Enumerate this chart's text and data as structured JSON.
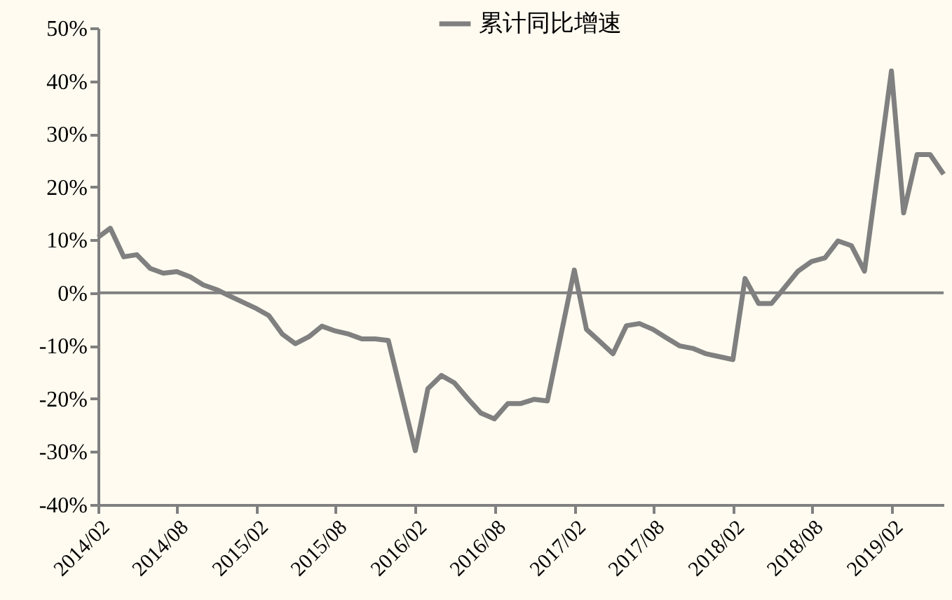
{
  "chart_data": {
    "type": "line",
    "legend": "top",
    "x": [
      "2014-02",
      "2014-03",
      "2014-04",
      "2014-05",
      "2014-06",
      "2014-07",
      "2014-08",
      "2014-09",
      "2014-10",
      "2014-11",
      "2014-12",
      "2015-02",
      "2015-03",
      "2015-04",
      "2015-05",
      "2015-06",
      "2015-07",
      "2015-08",
      "2015-09",
      "2015-10",
      "2015-11",
      "2015-12",
      "2016-02",
      "2016-03",
      "2016-04",
      "2016-05",
      "2016-06",
      "2016-07",
      "2016-08",
      "2016-09",
      "2016-10",
      "2016-11",
      "2016-12",
      "2017-02",
      "2017-03",
      "2017-04",
      "2017-05",
      "2017-06",
      "2017-07",
      "2017-08",
      "2017-09",
      "2017-10",
      "2017-11",
      "2017-12",
      "2018-02",
      "2018-03",
      "2018-04",
      "2018-05",
      "2018-06",
      "2018-07",
      "2018-08",
      "2018-09",
      "2018-10",
      "2018-11",
      "2018-12",
      "2019-02",
      "2019-03",
      "2019-04",
      "2019-05",
      "2019-06"
    ],
    "series": [
      {
        "name": "累计同比增速",
        "color": "#808080",
        "values": [
          10.5,
          12.2,
          6.8,
          7.2,
          4.6,
          3.7,
          4.0,
          3.0,
          1.5,
          0.6,
          -0.6,
          -3.0,
          -4.3,
          -7.8,
          -9.6,
          -8.3,
          -6.3,
          -7.2,
          -7.8,
          -8.7,
          -8.7,
          -9.0,
          -29.8,
          -18.1,
          -15.6,
          -17.0,
          -20.0,
          -22.7,
          -23.8,
          -20.9,
          -20.9,
          -20.1,
          -20.4,
          4.3,
          -6.9,
          -9.2,
          -11.5,
          -6.2,
          -5.8,
          -6.9,
          -8.5,
          -10.0,
          -10.5,
          -11.5,
          -12.6,
          2.7,
          -2.0,
          -2.0,
          1.1,
          4.1,
          5.9,
          6.6,
          9.8,
          8.9,
          4.1,
          41.9,
          15.1,
          26.1,
          26.1,
          22.4
        ]
      }
    ],
    "xlim": [
      "2014-02",
      "2019-06"
    ],
    "xticks": [
      {
        "value": "2014-02",
        "label": "2014/02"
      },
      {
        "value": "2014-08",
        "label": "2014/08"
      },
      {
        "value": "2015-02",
        "label": "2015/02"
      },
      {
        "value": "2015-08",
        "label": "2015/08"
      },
      {
        "value": "2016-02",
        "label": "2016/02"
      },
      {
        "value": "2016-08",
        "label": "2016/08"
      },
      {
        "value": "2017-02",
        "label": "2017/02"
      },
      {
        "value": "2017-08",
        "label": "2017/08"
      },
      {
        "value": "2018-02",
        "label": "2018/02"
      },
      {
        "value": "2018-08",
        "label": "2018/08"
      },
      {
        "value": "2019-02",
        "label": "2019/02"
      }
    ],
    "ylim": [
      -40,
      50
    ],
    "yticks": [
      {
        "value": -40,
        "label": "-40%"
      },
      {
        "value": -30,
        "label": "-30%"
      },
      {
        "value": -20,
        "label": "-20%"
      },
      {
        "value": -10,
        "label": "-10%"
      },
      {
        "value": 0,
        "label": "0%"
      },
      {
        "value": 10,
        "label": "10%"
      },
      {
        "value": 20,
        "label": "20%"
      },
      {
        "value": 30,
        "label": "30%"
      },
      {
        "value": 40,
        "label": "40%"
      },
      {
        "value": 50,
        "label": "50%"
      }
    ],
    "ref_lines": [
      {
        "axis": "y",
        "value": 0,
        "color": "#808080"
      }
    ],
    "grid": false,
    "line_style": "solid",
    "marker": "none"
  }
}
